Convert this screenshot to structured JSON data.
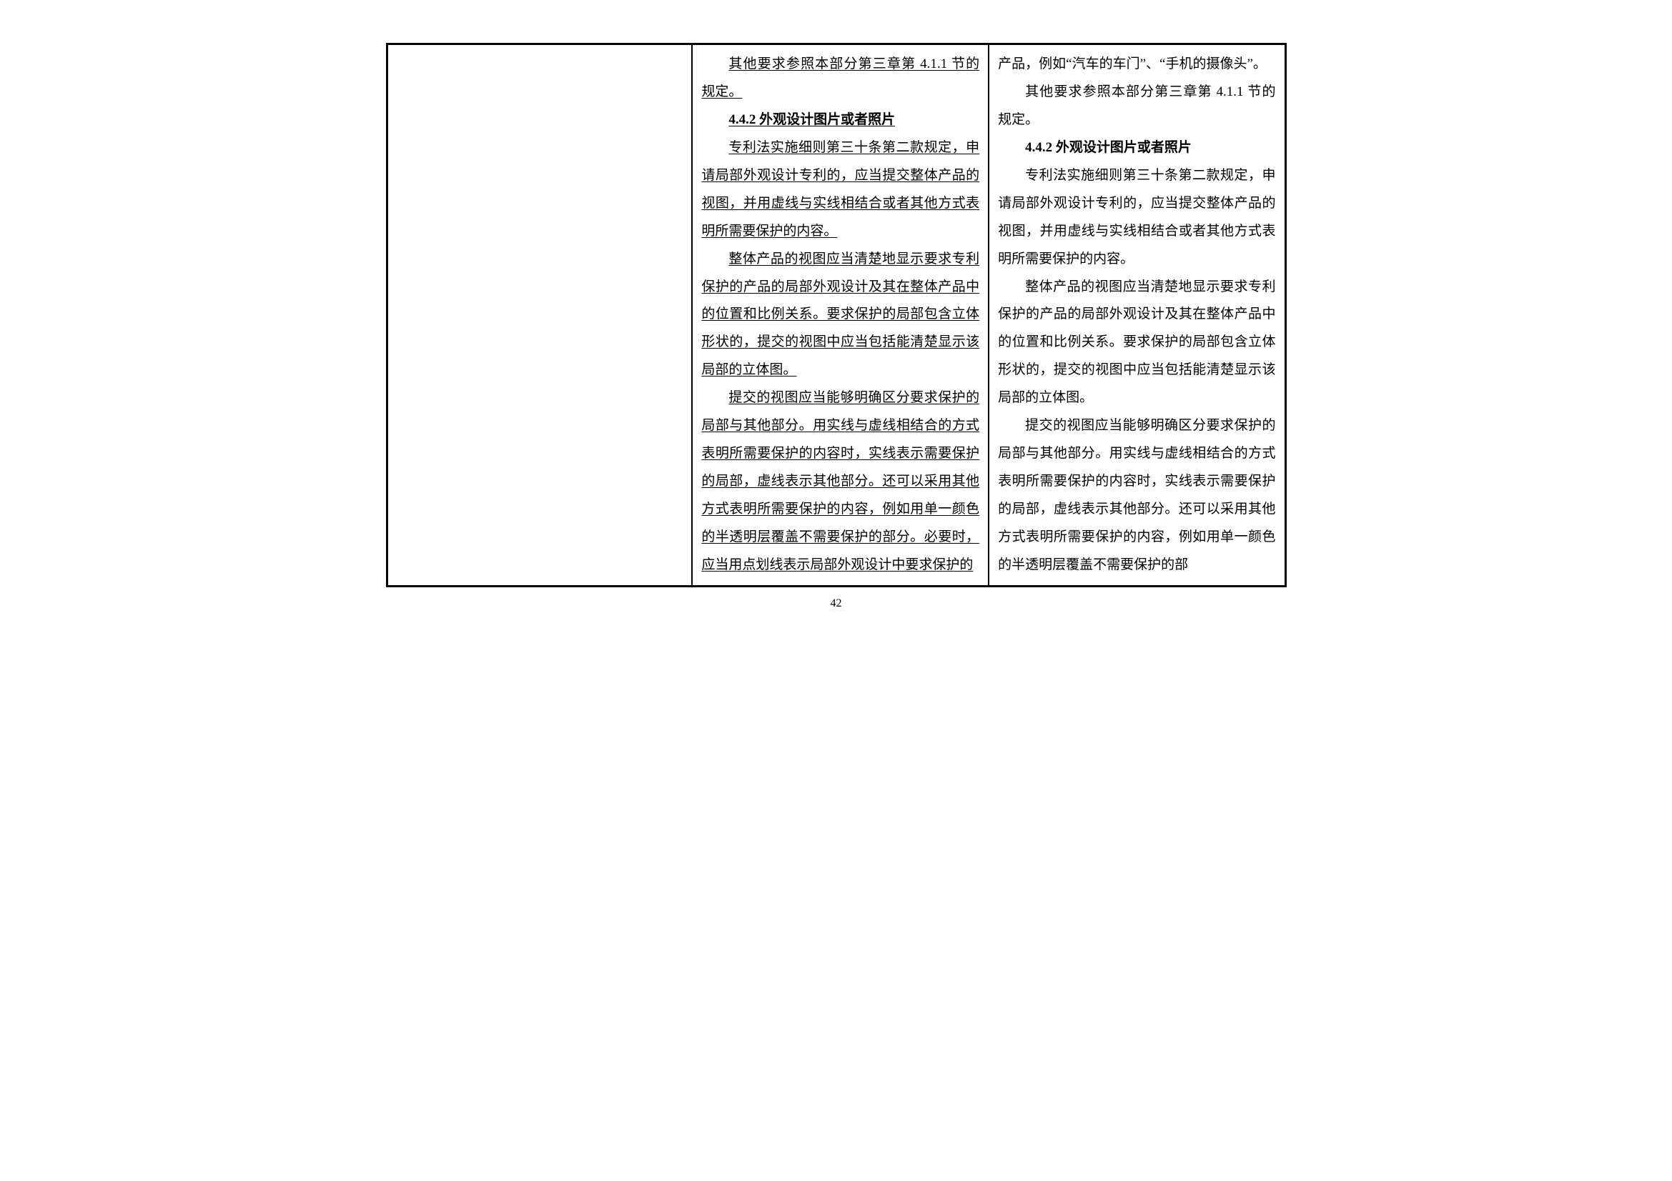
{
  "fonts": {
    "body_family": "SimSun",
    "body_size_pt": 14,
    "heading_weight": "bold",
    "line_height": 2.05
  },
  "colors": {
    "text": "#000000",
    "border": "#000000",
    "background": "#ffffff"
  },
  "layout": {
    "columns": 3,
    "border_width_outer": 3,
    "border_width_inner": 2,
    "col_widths_pct": [
      34,
      33,
      33
    ]
  },
  "left_column": {
    "empty": true
  },
  "mid_column": {
    "p1": "其他要求参照本部分第三章第 4.1.1 节的规定。",
    "h1": "4.4.2 外观设计图片或者照片",
    "p2": "专利法实施细则第三十条第二款规定，申请局部外观设计专利的，应当提交整体产品的视图，并用虚线与实线相结合或者其他方式表明所需要保护的内容。",
    "p3": "整体产品的视图应当清楚地显示要求专利保护的产品的局部外观设计及其在整体产品中的位置和比例关系。要求保护的局部包含立体形状的，提交的视图中应当包括能清楚显示该局部的立体图。",
    "p4": "提交的视图应当能够明确区分要求保护的局部与其他部分。用实线与虚线相结合的方式表明所需要保护的内容时，实线表示需要保护的局部，虚线表示其他部分。还可以采用其他方式表明所需要保护的内容，例如用单一颜色的半透明层覆盖不需要保护的部分。必要时，应当用点划线表示局部外观设计中要求保护的"
  },
  "right_column": {
    "p0": "产品，例如“汽车的车门”、“手机的摄像头”。",
    "p1": "其他要求参照本部分第三章第 4.1.1 节的规定。",
    "h1": "4.4.2 外观设计图片或者照片",
    "p2": "专利法实施细则第三十条第二款规定，申请局部外观设计专利的，应当提交整体产品的视图，并用虚线与实线相结合或者其他方式表明所需要保护的内容。",
    "p3": "整体产品的视图应当清楚地显示要求专利保护的产品的局部外观设计及其在整体产品中的位置和比例关系。要求保护的局部包含立体形状的，提交的视图中应当包括能清楚显示该局部的立体图。",
    "p4": "提交的视图应当能够明确区分要求保护的局部与其他部分。用实线与虚线相结合的方式表明所需要保护的内容时，实线表示需要保护的局部，虚线表示其他部分。还可以采用其他方式表明所需要保护的内容，例如用单一颜色的半透明层覆盖不需要保护的部"
  },
  "page_number": "42"
}
